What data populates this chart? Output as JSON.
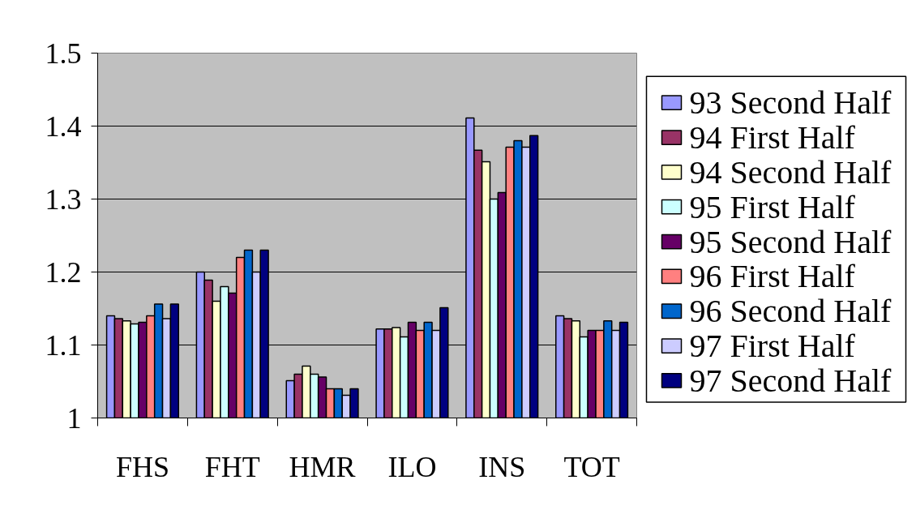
{
  "chart_data": {
    "type": "bar",
    "categories": [
      "FHS",
      "FHT",
      "HMR",
      "ILO",
      "INS",
      "TOT"
    ],
    "series": [
      {
        "name": "93 Second Half",
        "color": "#9999ff",
        "values": [
          1.14,
          1.2,
          1.051,
          1.122,
          1.411,
          1.14
        ]
      },
      {
        "name": "94 First Half",
        "color": "#993366",
        "values": [
          1.136,
          1.189,
          1.06,
          1.122,
          1.367,
          1.136
        ]
      },
      {
        "name": "94 Second Half",
        "color": "#ffffcc",
        "values": [
          1.133,
          1.16,
          1.071,
          1.124,
          1.351,
          1.133
        ]
      },
      {
        "name": "95 First Half",
        "color": "#ccffff",
        "values": [
          1.129,
          1.18,
          1.06,
          1.111,
          1.3,
          1.111
        ]
      },
      {
        "name": "95 Second Half",
        "color": "#660066",
        "values": [
          1.131,
          1.171,
          1.056,
          1.131,
          1.309,
          1.12
        ]
      },
      {
        "name": "96 First Half",
        "color": "#ff8080",
        "values": [
          1.14,
          1.22,
          1.04,
          1.12,
          1.371,
          1.12
        ]
      },
      {
        "name": "96 Second Half",
        "color": "#0066cc",
        "values": [
          1.156,
          1.23,
          1.04,
          1.131,
          1.38,
          1.133
        ]
      },
      {
        "name": "97 First Half",
        "color": "#ccccff",
        "values": [
          1.136,
          1.2,
          1.031,
          1.12,
          1.371,
          1.12
        ]
      },
      {
        "name": "97 Second Half",
        "color": "#000080",
        "values": [
          1.156,
          1.23,
          1.04,
          1.151,
          1.387,
          1.131
        ]
      }
    ],
    "ylim": [
      1,
      1.5
    ],
    "yticks": [
      1,
      1.1,
      1.2,
      1.3,
      1.4,
      1.5
    ],
    "grid": "y",
    "legend": "right"
  }
}
